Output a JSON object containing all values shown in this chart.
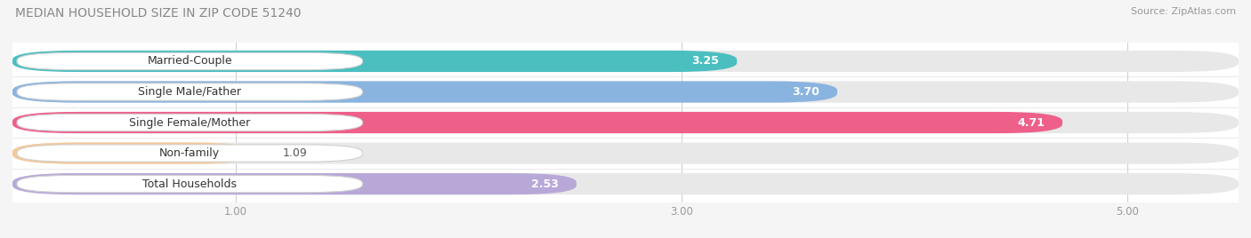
{
  "title": "MEDIAN HOUSEHOLD SIZE IN ZIP CODE 51240",
  "source": "Source: ZipAtlas.com",
  "categories": [
    "Married-Couple",
    "Single Male/Father",
    "Single Female/Mother",
    "Non-family",
    "Total Households"
  ],
  "values": [
    3.25,
    3.7,
    4.71,
    1.09,
    2.53
  ],
  "bar_colors": [
    "#4BBFBF",
    "#8AB4E0",
    "#EE5F8A",
    "#F5C897",
    "#B8A8D8"
  ],
  "xlim_data": [
    0.0,
    5.5
  ],
  "data_min": 0.0,
  "data_max": 5.5,
  "xticks": [
    1.0,
    3.0,
    5.0
  ],
  "xtick_labels": [
    "1.00",
    "3.00",
    "5.00"
  ],
  "background_color": "#f5f5f5",
  "bar_bg_color": "#e8e8e8",
  "title_fontsize": 10,
  "source_fontsize": 8,
  "label_fontsize": 9,
  "value_fontsize": 9
}
